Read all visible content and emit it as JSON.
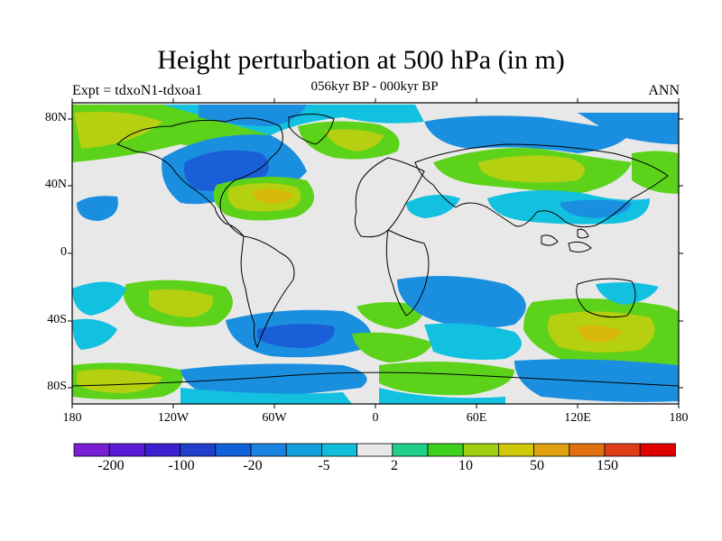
{
  "title": "Height perturbation at 500 hPa (in m)",
  "subtitle": "056kyr BP - 000kyr BP",
  "left_string": "Expt = tdxoN1-tdxoa1",
  "right_string": "ANN",
  "y_ticks": [
    "80N",
    "40N",
    "0",
    "40S",
    "80S"
  ],
  "x_ticks": [
    "180",
    "120W",
    "60W",
    "0",
    "60E",
    "120E",
    "180"
  ],
  "colorbar": {
    "colors": [
      "#7a1fd6",
      "#5a1bd6",
      "#3a20d0",
      "#1f3fcc",
      "#1060d8",
      "#1a82e0",
      "#14a0dc",
      "#10bedc",
      "#e8e8e8",
      "#20d08a",
      "#3cd21c",
      "#a0d010",
      "#d0c808",
      "#e0a010",
      "#e07010",
      "#e03c18",
      "#e00000"
    ],
    "labels": [
      "-200",
      "-100",
      "-20",
      "-5",
      "2",
      "10",
      "50",
      "150"
    ]
  },
  "colors": {
    "land_fill": "#e8e8e8",
    "strong_negative": "#1a5fd8",
    "negative": "#1a8fe0",
    "weak_negative": "#12c0e0",
    "weak_positive": "#1fd088",
    "positive": "#5cd21a",
    "strong_positive": "#b4d010",
    "max_positive": "#d8b808"
  }
}
